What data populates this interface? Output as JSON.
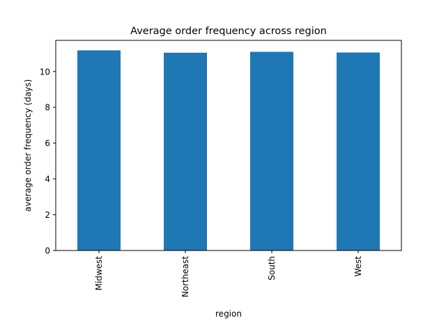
{
  "chart_data": {
    "type": "bar",
    "title": "Average order frequency across region",
    "xlabel": "region",
    "ylabel": "average order frequency (days)",
    "categories": [
      "Midwest",
      "Northeast",
      "South",
      "West"
    ],
    "values": [
      11.18,
      11.05,
      11.1,
      11.06
    ],
    "ylim": [
      0,
      11.74
    ],
    "yticks": [
      0,
      2,
      4,
      6,
      8,
      10
    ],
    "bar_color": "#1f77b4",
    "grid": false,
    "legend": "none"
  }
}
